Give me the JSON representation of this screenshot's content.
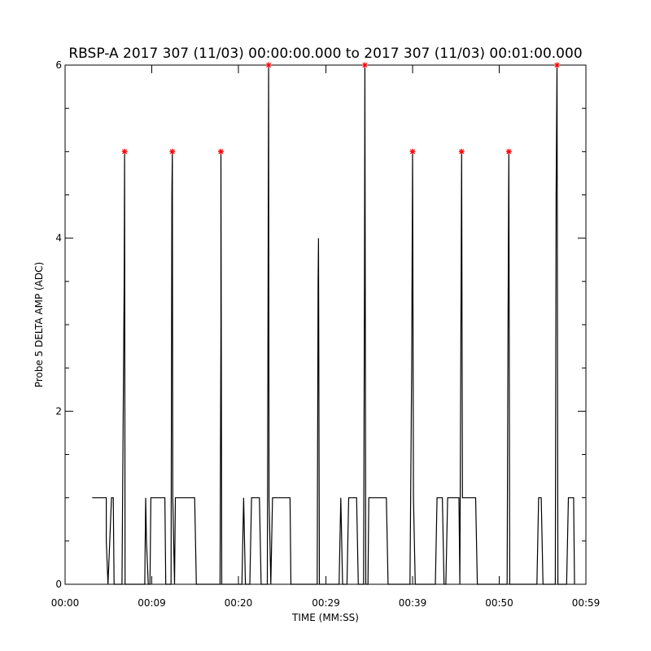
{
  "chart_data": {
    "type": "line",
    "title": "RBSP-A 2017 307 (11/03) 00:00:00.000 to 2017 307 (11/03) 00:01:00.000",
    "xlabel": "TIME (MM:SS)",
    "ylabel": "Probe 5 DELTA AMP (ADC)",
    "xlim": [
      0,
      59.5
    ],
    "ylim": [
      0,
      6
    ],
    "x_ticks": [
      {
        "value": 0,
        "label": "00:00"
      },
      {
        "value": 9.9,
        "label": "00:09"
      },
      {
        "value": 19.8,
        "label": "00:20"
      },
      {
        "value": 29.8,
        "label": "00:29"
      },
      {
        "value": 39.7,
        "label": "00:39"
      },
      {
        "value": 49.6,
        "label": "00:50"
      },
      {
        "value": 59.5,
        "label": "00:59"
      }
    ],
    "y_ticks": [
      {
        "value": 0,
        "label": "0"
      },
      {
        "value": 2,
        "label": "2"
      },
      {
        "value": 4,
        "label": "4"
      },
      {
        "value": 6,
        "label": "6"
      }
    ],
    "grid": false,
    "line_color": "#000000",
    "marker_color": "#ff0000",
    "series": [
      {
        "points": [
          [
            3.1,
            1
          ],
          [
            4.7,
            1
          ],
          [
            4.7,
            0.5
          ],
          [
            4.9,
            0
          ],
          [
            5.1,
            0.5
          ],
          [
            5.3,
            1
          ],
          [
            5.5,
            1
          ],
          [
            5.6,
            0
          ],
          [
            6.5,
            0
          ],
          [
            6.75,
            3.5
          ],
          [
            6.8,
            5
          ],
          [
            6.85,
            0
          ],
          [
            9.1,
            0
          ],
          [
            9.2,
            1
          ],
          [
            9.3,
            0.5
          ],
          [
            9.5,
            0
          ],
          [
            9.7,
            0
          ],
          [
            9.8,
            1
          ],
          [
            11.4,
            1
          ],
          [
            11.5,
            0
          ],
          [
            12.1,
            0
          ],
          [
            12.2,
            4.5
          ],
          [
            12.25,
            5
          ],
          [
            12.3,
            1
          ],
          [
            12.5,
            0
          ],
          [
            12.6,
            1
          ],
          [
            14.8,
            1
          ],
          [
            15,
            0
          ],
          [
            17.7,
            0
          ],
          [
            17.8,
            3
          ],
          [
            17.8,
            5
          ],
          [
            17.9,
            0
          ],
          [
            20.2,
            0
          ],
          [
            20.4,
            1
          ],
          [
            20.6,
            0
          ],
          [
            21.1,
            0
          ],
          [
            21.3,
            1
          ],
          [
            22.2,
            1
          ],
          [
            22.4,
            0
          ],
          [
            23.1,
            0
          ],
          [
            23.25,
            6
          ],
          [
            23.3,
            1
          ],
          [
            23.5,
            0
          ],
          [
            23.7,
            1
          ],
          [
            25.7,
            1
          ],
          [
            25.8,
            0
          ],
          [
            28.8,
            0
          ],
          [
            28.9,
            3.5
          ],
          [
            28.95,
            4
          ],
          [
            29.05,
            0
          ],
          [
            31.3,
            0
          ],
          [
            31.5,
            1
          ],
          [
            31.7,
            0
          ],
          [
            32.2,
            0
          ],
          [
            32.4,
            1
          ],
          [
            33.3,
            1
          ],
          [
            33.5,
            0
          ],
          [
            34.1,
            0
          ],
          [
            34.2,
            3.5
          ],
          [
            34.25,
            6
          ],
          [
            34.35,
            0
          ],
          [
            34.6,
            0
          ],
          [
            34.7,
            1
          ],
          [
            36.7,
            1
          ],
          [
            36.9,
            0
          ],
          [
            39.4,
            0
          ],
          [
            39.6,
            2.5
          ],
          [
            39.7,
            5
          ],
          [
            39.8,
            1
          ],
          [
            40,
            0
          ],
          [
            42.3,
            0
          ],
          [
            42.5,
            1
          ],
          [
            43.1,
            1
          ],
          [
            43.3,
            0
          ],
          [
            43.5,
            0
          ],
          [
            43.7,
            1
          ],
          [
            45,
            1
          ],
          [
            45.1,
            0
          ],
          [
            45.2,
            2.5
          ],
          [
            45.3,
            5
          ],
          [
            45.4,
            1
          ],
          [
            46.9,
            1
          ],
          [
            47.1,
            0
          ],
          [
            50.5,
            0
          ],
          [
            50.6,
            3
          ],
          [
            50.7,
            5
          ],
          [
            50.8,
            0
          ],
          [
            53.9,
            0
          ],
          [
            54.1,
            1
          ],
          [
            54.4,
            1
          ],
          [
            54.6,
            0
          ],
          [
            56,
            0
          ],
          [
            56.1,
            4.5
          ],
          [
            56.2,
            6
          ],
          [
            56.3,
            0
          ],
          [
            57.3,
            0
          ],
          [
            57.5,
            1
          ],
          [
            58.1,
            1
          ],
          [
            58.2,
            0
          ]
        ],
        "markers": [
          [
            6.8,
            5
          ],
          [
            12.25,
            5
          ],
          [
            17.8,
            5
          ],
          [
            23.25,
            6
          ],
          [
            34.25,
            6
          ],
          [
            39.7,
            5
          ],
          [
            45.3,
            5
          ],
          [
            50.7,
            5
          ],
          [
            56.2,
            6
          ]
        ]
      }
    ]
  }
}
